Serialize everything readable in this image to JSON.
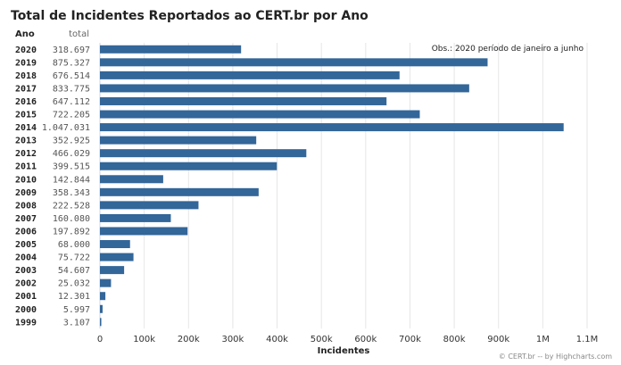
{
  "chart_data": {
    "type": "bar",
    "orientation": "horizontal",
    "title": "Total de Incidentes Reportados ao CERT.br por Ano",
    "col_headers": {
      "year": "Ano",
      "total": "total"
    },
    "categories": [
      "2020",
      "2019",
      "2018",
      "2017",
      "2016",
      "2015",
      "2014",
      "2013",
      "2012",
      "2011",
      "2010",
      "2009",
      "2008",
      "2007",
      "2006",
      "2005",
      "2004",
      "2003",
      "2002",
      "2001",
      "2000",
      "1999"
    ],
    "total_labels": [
      "318.697",
      "875.327",
      "676.514",
      "833.775",
      "647.112",
      "722.205",
      "1.047.031",
      "352.925",
      "466.029",
      "399.515",
      "142.844",
      "358.343",
      "222.528",
      "160.080",
      "197.892",
      "68.000",
      "75.722",
      "54.607",
      "25.032",
      "12.301",
      "5.997",
      "3.107"
    ],
    "values": [
      318697,
      875327,
      676514,
      833775,
      647112,
      722205,
      1047031,
      352925,
      466029,
      399515,
      142844,
      358343,
      222528,
      160080,
      197892,
      68000,
      75722,
      54607,
      25032,
      12301,
      5997,
      3107
    ],
    "xlim": [
      0,
      1100000
    ],
    "xticks": [
      0,
      100000,
      200000,
      300000,
      400000,
      500000,
      600000,
      700000,
      800000,
      900000,
      1000000,
      1100000
    ],
    "xtick_labels": [
      "0",
      "100k",
      "200k",
      "300k",
      "400k",
      "500k",
      "600k",
      "700k",
      "800k",
      "900k",
      "1M",
      "1.1M"
    ],
    "xlabel": "Incidentes",
    "grid": true,
    "bar_color": "#336699",
    "annotation": "Obs.: 2020 período de janeiro a junho",
    "credits": "© CERT.br -- by Highcharts.com"
  }
}
